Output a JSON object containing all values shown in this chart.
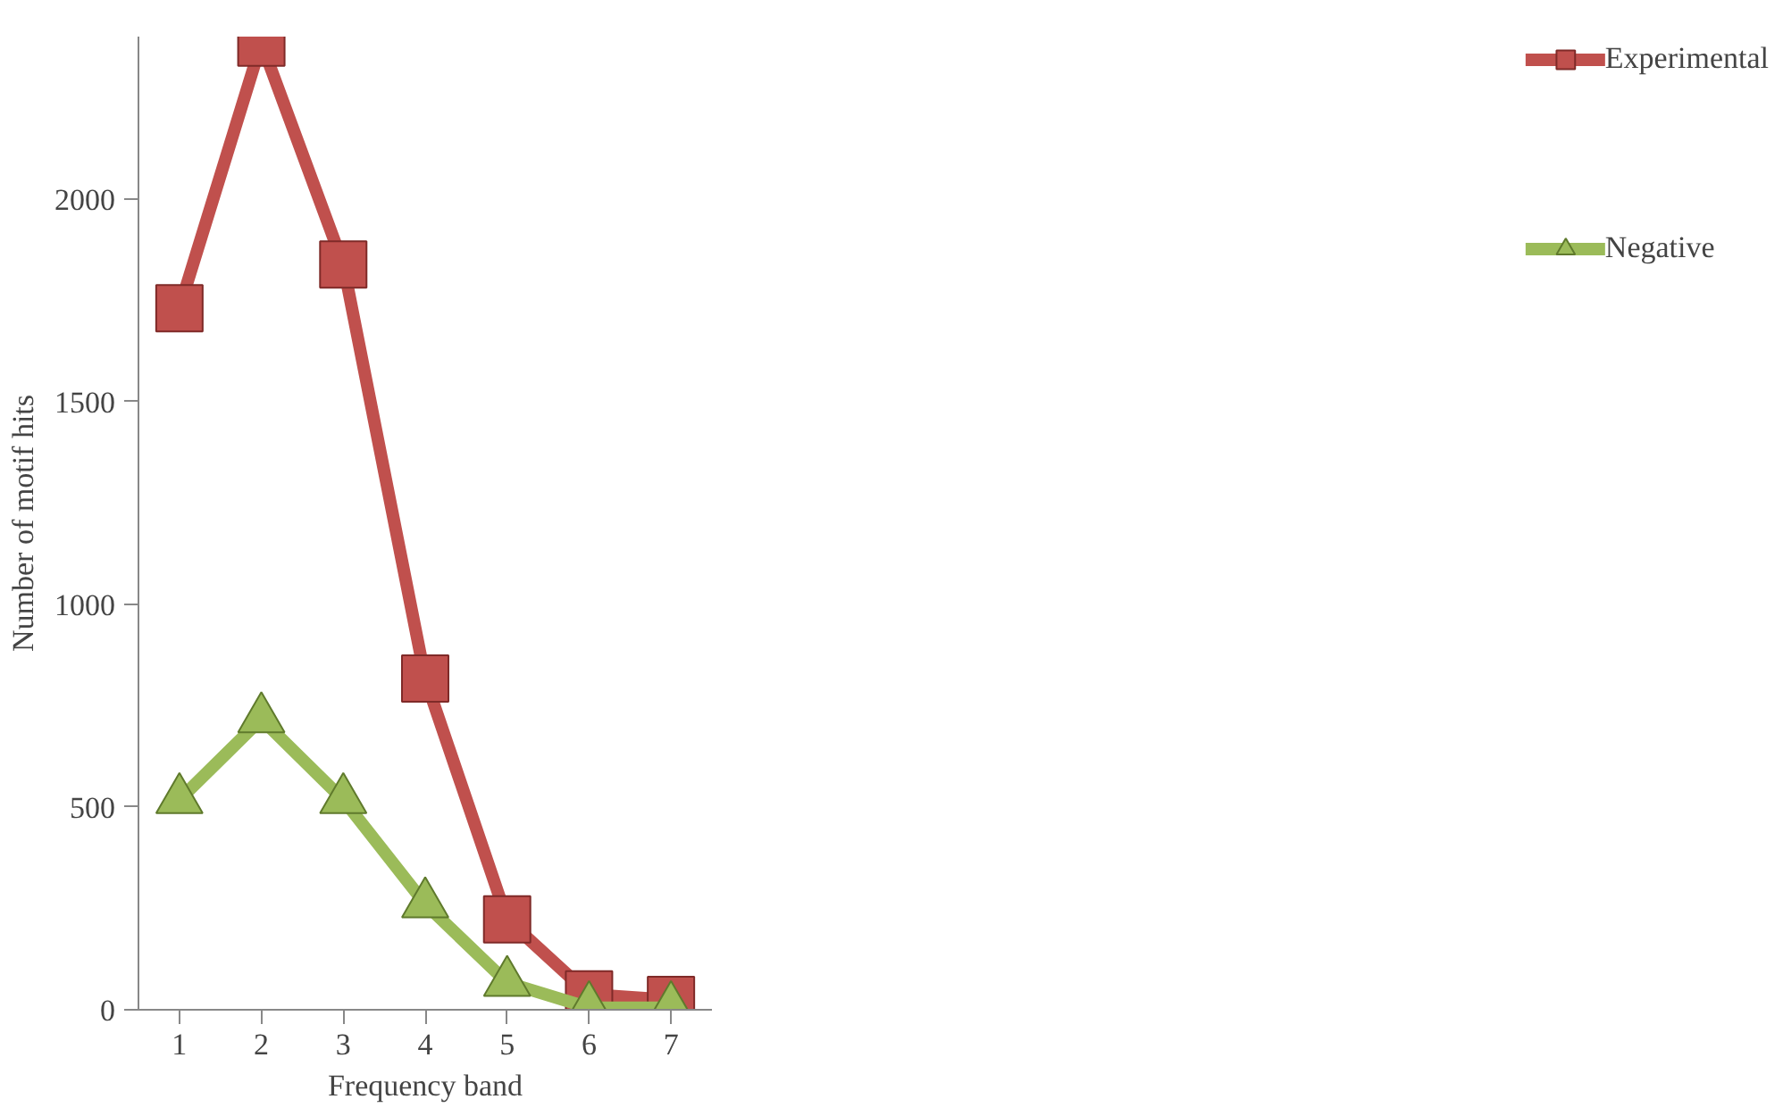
{
  "chart_data": {
    "type": "line",
    "xlabel": "Frequency band",
    "ylabel": "Number of motif hits",
    "categories": [
      "1",
      "2",
      "3",
      "4",
      "5",
      "6",
      "7"
    ],
    "series": [
      {
        "name": "Experimental",
        "color": "#c0504d",
        "marker": "square",
        "values": [
          1730,
          2385,
          1838,
          817,
          223,
          38,
          24
        ]
      },
      {
        "name": "Negative",
        "color": "#9bbb59",
        "marker": "triangle",
        "values": [
          518,
          717,
          518,
          261,
          67,
          5,
          5
        ]
      }
    ],
    "ylim": [
      0,
      2400
    ],
    "yticks": [
      0,
      500,
      1000,
      1500,
      2000
    ],
    "grid": false,
    "legend": "right",
    "line_style": "solid"
  }
}
